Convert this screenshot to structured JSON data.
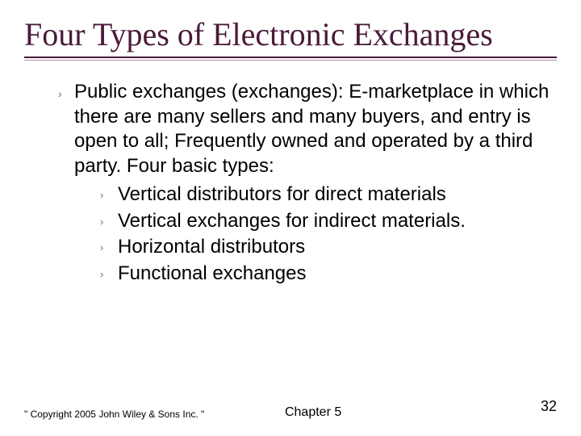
{
  "title": "Four Types of Electronic Exchanges",
  "main_bullet": "Public exchanges (exchanges):  E-marketplace in which there are many sellers and many buyers, and entry is open to all; Frequently owned and operated by a third party. Four basic types:",
  "sub_bullets": [
    "Vertical distributors for direct materials",
    "Vertical exchanges for  indirect materials.",
    "Horizontal distributors",
    "Functional exchanges"
  ],
  "copyright": "\" Copyright 2005 John Wiley & Sons Inc. \"",
  "chapter": "Chapter 5",
  "page_number": "32",
  "colors": {
    "title": "#4a1a3a",
    "rule_top": "#4a1a3a",
    "rule_bottom": "#b88aa8",
    "bullet_glyph": "#6d6d6d",
    "text": "#000000",
    "background": "#ffffff"
  },
  "fonts": {
    "title_family": "Times New Roman",
    "title_size_pt": 30,
    "body_family": "Arial",
    "body_size_pt": 18,
    "footer_size_pt": 9,
    "chapter_size_pt": 12,
    "pagenum_size_pt": 14
  }
}
